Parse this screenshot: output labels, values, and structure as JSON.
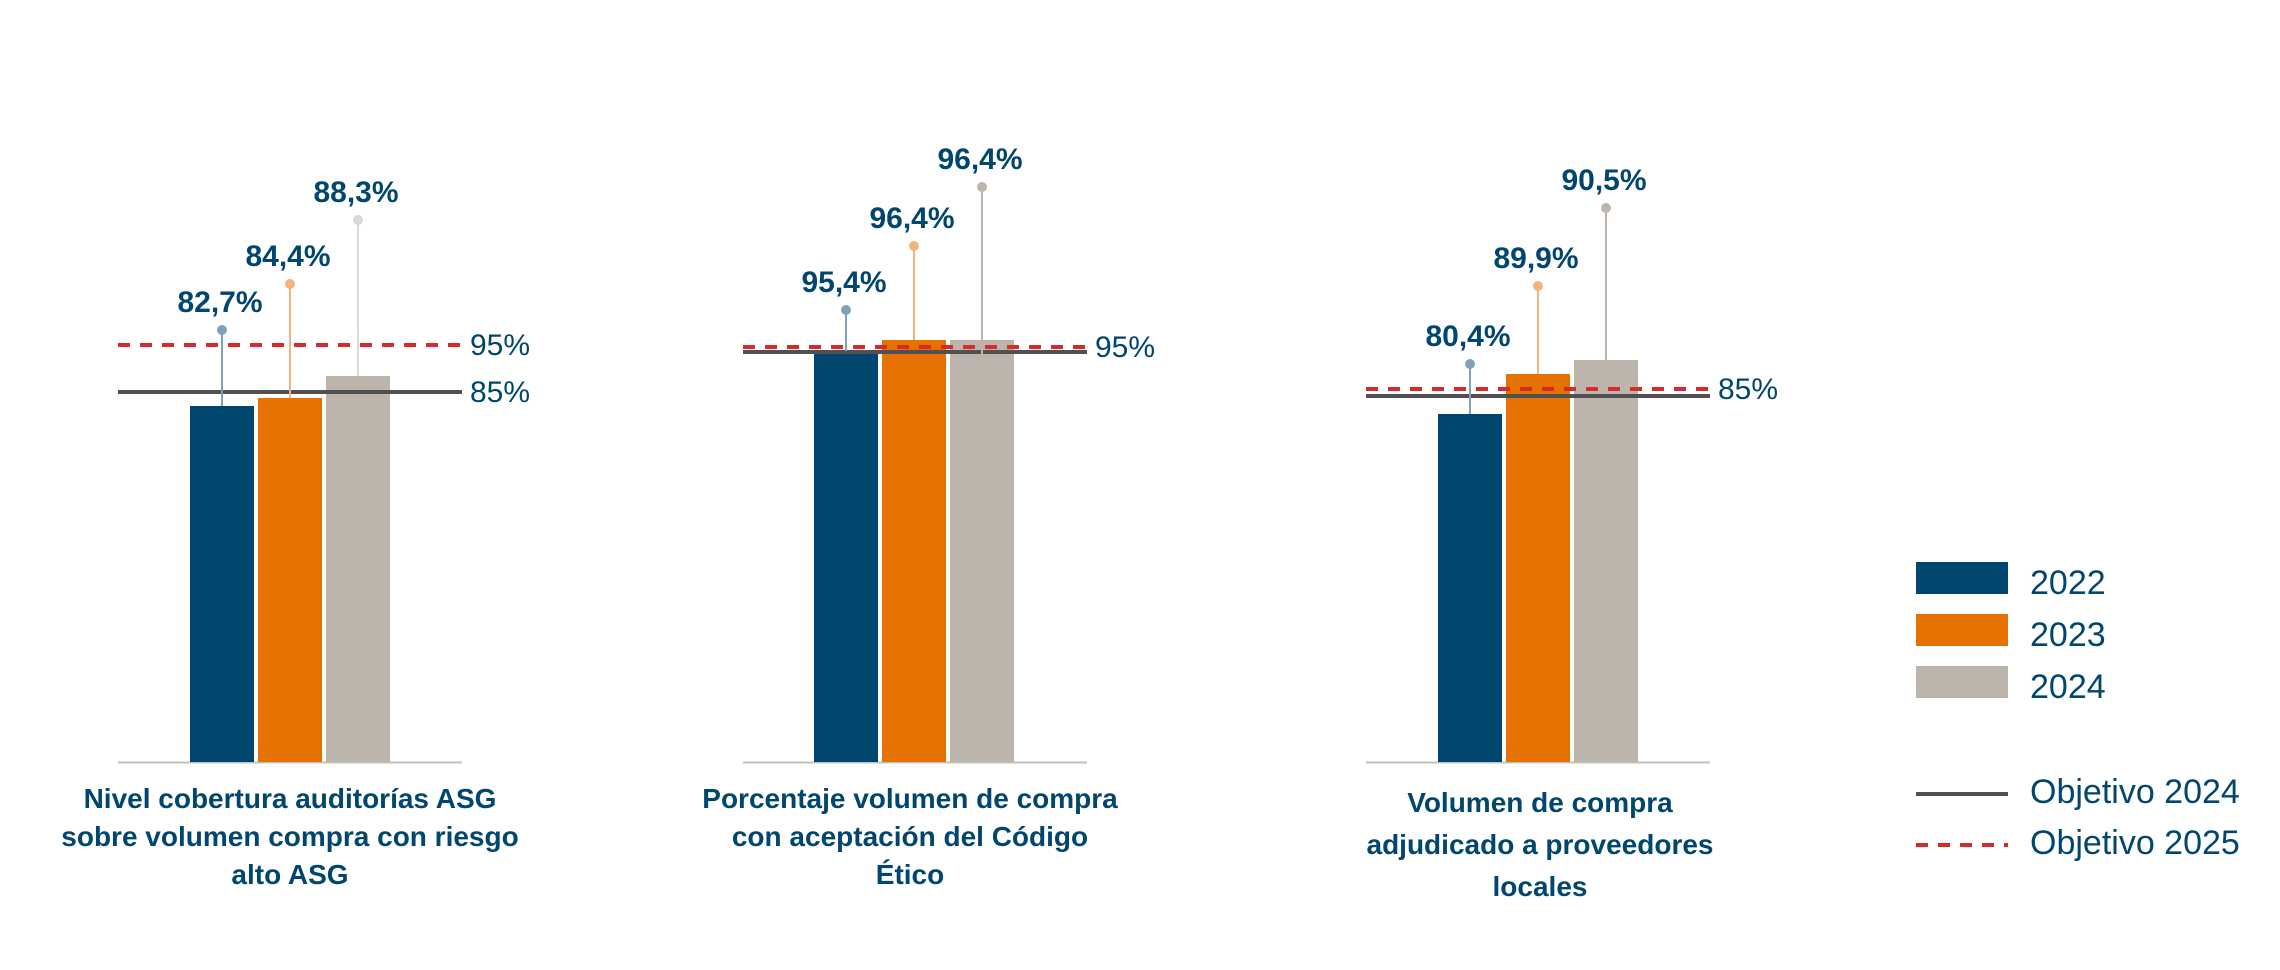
{
  "colors": {
    "y2022": "#00466e",
    "y2023": "#e57200",
    "y2024": "#bdb5ab",
    "y2022_stem": "#7fa2b7",
    "y2023_stem": "#f2b47c",
    "y2024_stem_1": "#dcd8d3",
    "y2024_stem": "#bdb5ab",
    "target_2024": "#505050",
    "target_2025": "#d52b2b",
    "text": "#00466e",
    "baseline": "#c0c0c0"
  },
  "chart_data": [
    {
      "type": "bar",
      "title": "Nivel cobertura auditorías ASG sobre volumen compra con riesgo alto ASG",
      "categories": [
        "2022",
        "2023",
        "2024"
      ],
      "values": [
        82.7,
        84.4,
        88.3
      ],
      "labels": [
        "82,7%",
        "84,4%",
        "88,3%"
      ],
      "target_2024": {
        "value": 85,
        "label": "85%"
      },
      "target_2025": {
        "value": 95,
        "label": "95%"
      },
      "unit": "%"
    },
    {
      "type": "bar",
      "title": "Porcentaje volumen de compra con aceptación del Código Ético",
      "categories": [
        "2022",
        "2023",
        "2024"
      ],
      "values": [
        95.4,
        96.4,
        96.4
      ],
      "labels": [
        "95,4%",
        "96,4%",
        "96,4%"
      ],
      "target_2024": {
        "value": 95,
        "label": ""
      },
      "target_2025": {
        "value": 95,
        "label": "95%"
      },
      "unit": "%"
    },
    {
      "type": "bar",
      "title": "Volumen de compra adjudicado a proveedores locales",
      "categories": [
        "2022",
        "2023",
        "2024"
      ],
      "values": [
        80.4,
        89.9,
        90.5
      ],
      "labels": [
        "80,4%",
        "89,9%",
        "90,5%"
      ],
      "target_2024": {
        "value": 85,
        "label": ""
      },
      "target_2025": {
        "value": 85,
        "label": "85%"
      },
      "unit": "%"
    }
  ],
  "legend": {
    "series": [
      "2022",
      "2023",
      "2024"
    ],
    "targets": [
      "Objetivo 2024",
      "Objetivo 2025"
    ]
  }
}
